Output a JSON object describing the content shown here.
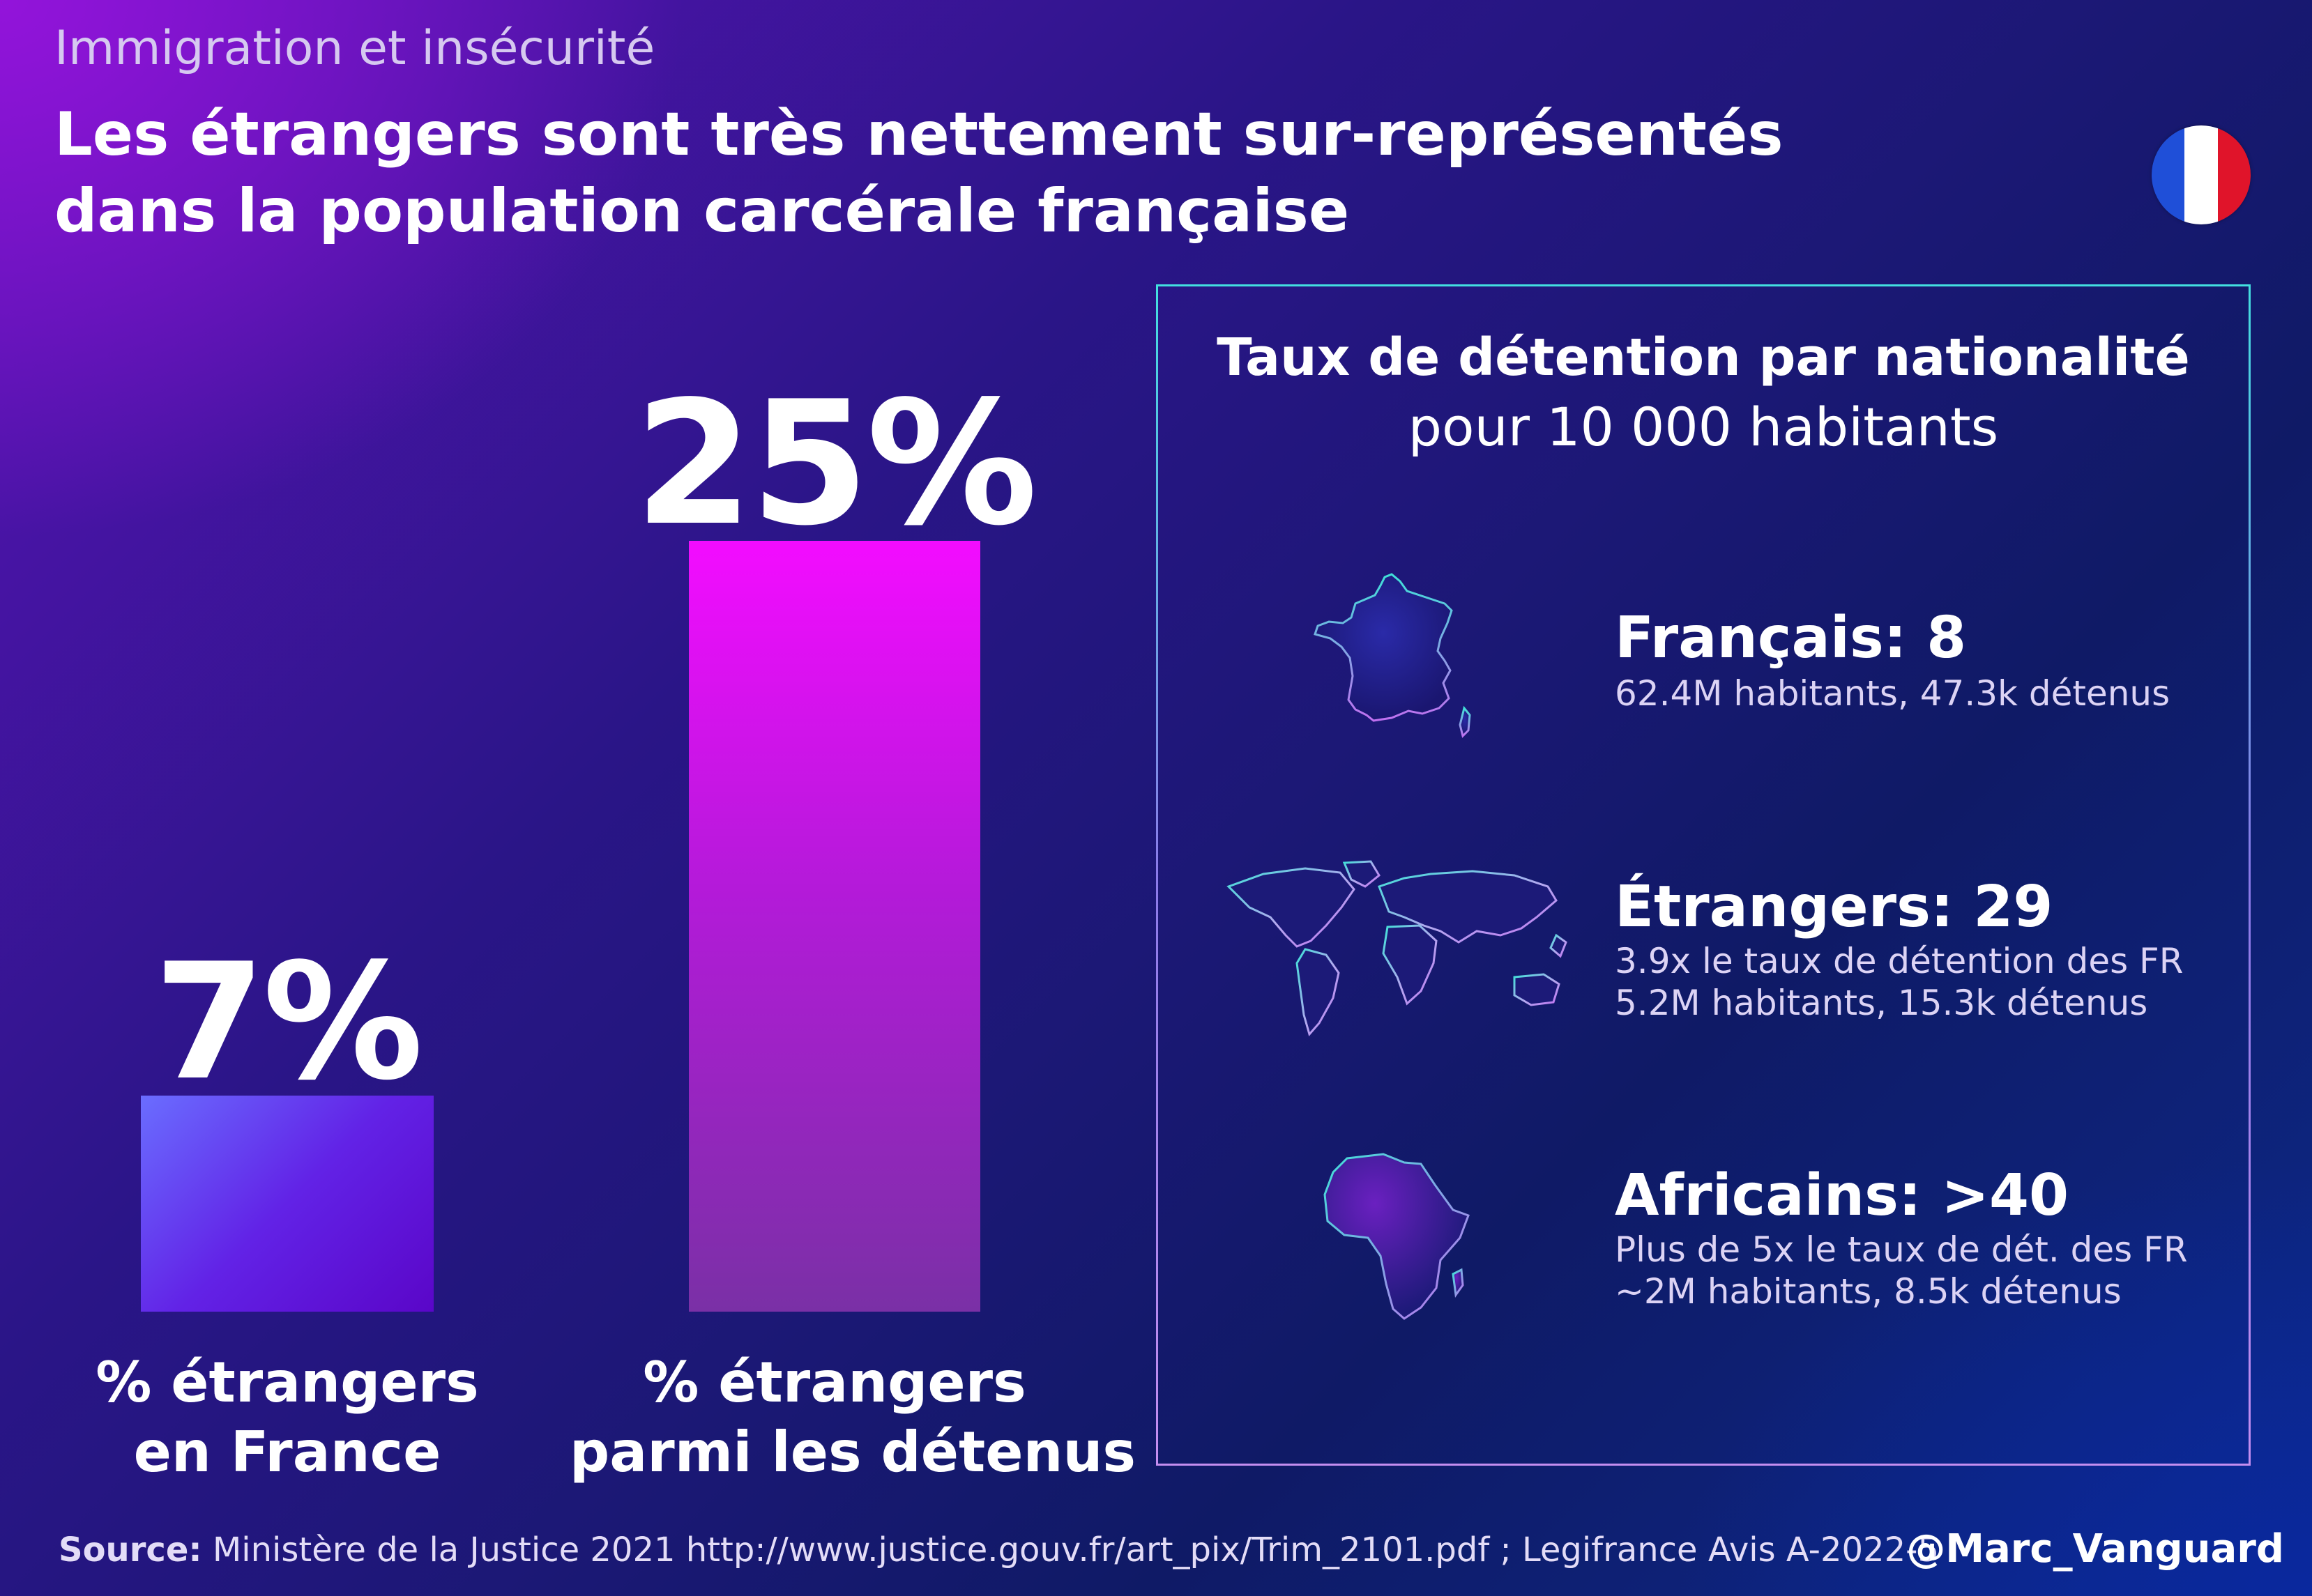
{
  "header": {
    "supertitle": "Immigration et insécurité",
    "title": "Les étrangers sont très nettement sur-représentés dans la population carcérale française"
  },
  "flag": {
    "icon": "france-flag-icon",
    "colors": [
      "#1f4fd8",
      "#ffffff",
      "#e0142a"
    ]
  },
  "chart_data": {
    "type": "bar",
    "categories": [
      "% étrangers en France",
      "% étrangers parmi les détenus"
    ],
    "category_lines": [
      [
        "% étrangers",
        "en France"
      ],
      [
        "% étrangers",
        "parmi les détenus"
      ]
    ],
    "values": [
      7,
      25
    ],
    "value_labels": [
      "7%",
      "25%"
    ],
    "ylim": [
      0,
      25
    ],
    "title": "",
    "xlabel": "",
    "ylabel": "",
    "grid": false
  },
  "panel": {
    "title": "Taux de détention par nationalité",
    "subtitle": "pour 10 000 habitants",
    "rows": [
      {
        "icon": "france-map-icon",
        "head": "Français: 8",
        "lines": [
          "62.4M habitants, 47.3k détenus"
        ]
      },
      {
        "icon": "world-map-icon",
        "head": "Étrangers: 29",
        "lines": [
          "3.9x le taux de détention des FR",
          "5.2M habitants, 15.3k détenus"
        ]
      },
      {
        "icon": "africa-map-icon",
        "head": "Africains: >40",
        "lines": [
          "Plus de 5x le taux de dét. des FR",
          "~2M habitants, 8.5k détenus"
        ]
      }
    ]
  },
  "footer": {
    "source_label": "Source:",
    "source_text": " Ministère de la Justice 2021 http://www.justice.gouv.fr/art_pix/Trim_2101.pdf ; Legifrance Avis A-2022-5",
    "handle": "@Marc_Vanguard"
  }
}
